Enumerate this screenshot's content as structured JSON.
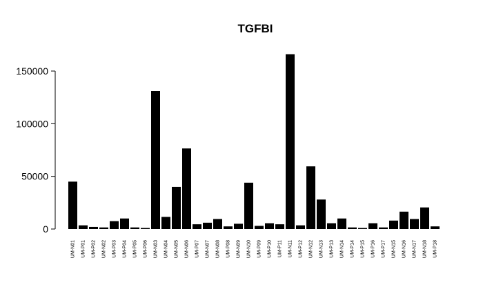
{
  "chart_data": {
    "type": "bar",
    "title": "TGFBI",
    "xlabel": "",
    "ylabel": "",
    "ylim": [
      0,
      170000
    ],
    "yticks": [
      0,
      50000,
      100000,
      150000
    ],
    "ytick_labels": [
      "0",
      "50000",
      "100000",
      "150000"
    ],
    "grid": false,
    "bar_color": "#000000",
    "categories": [
      "UM-N01",
      "UM-P01",
      "UM-P02",
      "UM-N02",
      "UM-P03",
      "UM-P04",
      "UM-P05",
      "UM-P06",
      "UM-N03",
      "UM-N04",
      "UM-N05",
      "UM-N06",
      "UM-P07",
      "UM-N07",
      "UM-N08",
      "UM-P08",
      "UM-N09",
      "UM-N10",
      "UM-P09",
      "UM-P10",
      "UM-P11",
      "UM-N11",
      "UM-P12",
      "UM-N12",
      "UM-N13",
      "UM-P13",
      "UM-N14",
      "UM-P14",
      "UM-P15",
      "UM-P16",
      "UM-P17",
      "UM-N15",
      "UM-N16",
      "UM-N17",
      "UM-N18",
      "UM-P18"
    ],
    "values": [
      45000,
      3500,
      2000,
      1500,
      7500,
      10000,
      1500,
      1000,
      131000,
      11500,
      40000,
      76500,
      4500,
      6000,
      9500,
      2500,
      5000,
      44000,
      3000,
      5500,
      4500,
      166000,
      3500,
      59500,
      28000,
      5500,
      10000,
      1500,
      1000,
      5500,
      1500,
      8000,
      16500,
      9500,
      20500,
      2500
    ]
  }
}
